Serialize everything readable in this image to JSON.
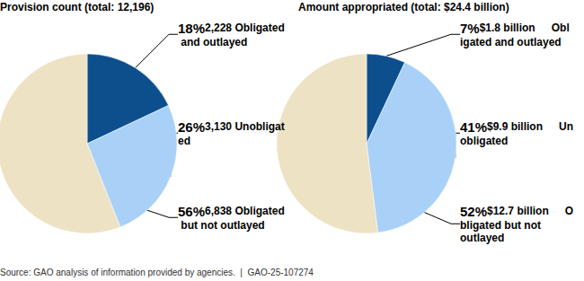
{
  "chart_data": [
    {
      "type": "pie",
      "title": "Provision count (total: 12,196)",
      "categories": [
        "Obligated and outlayed",
        "Unobligated",
        "Obligated but not outlayed"
      ],
      "values": [
        18,
        26,
        56
      ],
      "value_labels": [
        "18%",
        "26%",
        "56%"
      ],
      "detail_labels": [
        "2,228",
        "3,130",
        "6,838"
      ],
      "colors": [
        "#0c4f8c",
        "#a9d1f7",
        "#ede2c4"
      ],
      "data_labels": true
    },
    {
      "type": "pie",
      "title": "Amount appropriated (total: $24.4 billion)",
      "categories": [
        "Obligated and outlayed",
        "Unobligated",
        "Obligated but not outlayed"
      ],
      "values": [
        7,
        41,
        52
      ],
      "value_labels": [
        "7%",
        "41%",
        "52%"
      ],
      "detail_labels": [
        "$1.8 billion",
        "$9.9 billion",
        "$12.7 billion"
      ],
      "colors": [
        "#0c4f8c",
        "#a9d1f7",
        "#ede2c4"
      ],
      "data_labels": true
    }
  ],
  "source": "Source: GAO analysis of information provided by agencies.  |  GAO-25-107274"
}
